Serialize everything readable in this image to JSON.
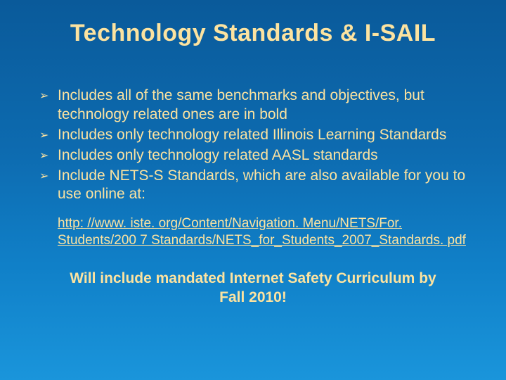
{
  "colors": {
    "text": "#fce3a0",
    "bg_top": "#0a5a9a",
    "bg_bottom": "#1a95db"
  },
  "typography": {
    "title_fontsize": 34,
    "title_weight": "bold",
    "body_fontsize": 21,
    "link_fontsize": 19,
    "closing_fontsize": 21,
    "closing_weight": "bold",
    "font_family": "Arial"
  },
  "title": "Technology Standards & I-SAIL",
  "bullets": [
    "Includes all of the same benchmarks and objectives, but technology related ones are in bold",
    "Includes only technology related Illinois Learning Standards",
    "Includes only technology related AASL standards",
    "Include NETS-S Standards, which are also available for you to use online at:"
  ],
  "bullet_marker": "➢",
  "link": "http: //www. iste. org/Content/Navigation. Menu/NETS/For. Students/200 7 Standards/NETS_for_Students_2007_Standards. pdf",
  "closing": "Will include mandated Internet Safety Curriculum by Fall 2010!"
}
